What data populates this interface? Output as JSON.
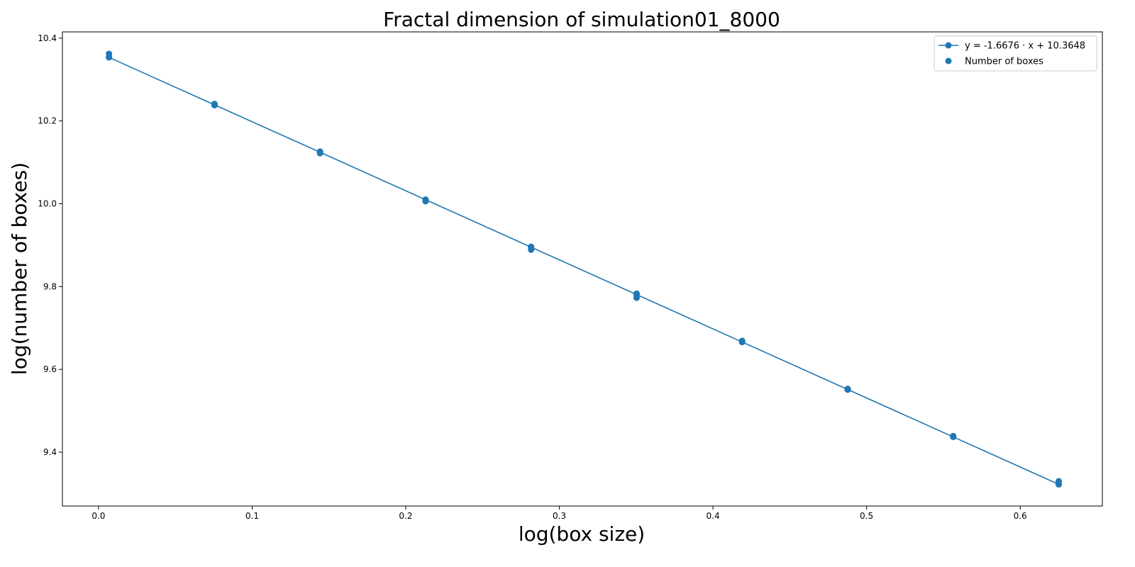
{
  "chart_data": {
    "type": "scatter",
    "title": "Fractal dimension of simulation01_8000",
    "xlabel": "log(box size)",
    "ylabel": "log(number of boxes)",
    "xlim": [
      -0.0235,
      0.6535
    ],
    "ylim": [
      9.27,
      10.415
    ],
    "x_ticks": [
      0.0,
      0.1,
      0.2,
      0.3,
      0.4,
      0.5,
      0.6
    ],
    "x_tick_labels": [
      "0.0",
      "0.1",
      "0.2",
      "0.3",
      "0.4",
      "0.5",
      "0.6"
    ],
    "y_ticks": [
      9.4,
      9.6,
      9.8,
      10.0,
      10.2,
      10.4
    ],
    "y_tick_labels": [
      "9.4",
      "9.6",
      "9.8",
      "10.0",
      "10.2",
      "10.4"
    ],
    "grid": false,
    "legend_position": "top-right",
    "colors": {
      "series": "#1f77b4"
    },
    "series": [
      {
        "name": "y = -1.6676 · x + 10.3648",
        "kind": "line",
        "x": [
          0.0068,
          0.0755,
          0.1442,
          0.2129,
          0.2816,
          0.3503,
          0.419,
          0.4877,
          0.5564,
          0.6251
        ],
        "y": [
          10.3535,
          10.2389,
          10.1244,
          10.0098,
          9.8952,
          9.7807,
          9.6661,
          9.5516,
          9.437,
          9.3224
        ]
      },
      {
        "name": "Number of boxes",
        "kind": "scatter",
        "x": [
          0.0068,
          0.0068,
          0.0755,
          0.0755,
          0.1442,
          0.1442,
          0.2129,
          0.2129,
          0.2816,
          0.2816,
          0.3503,
          0.3503,
          0.419,
          0.419,
          0.4877,
          0.4877,
          0.5564,
          0.5564,
          0.6251,
          0.6251
        ],
        "y": [
          10.362,
          10.354,
          10.241,
          10.238,
          10.126,
          10.122,
          10.01,
          10.006,
          9.896,
          9.889,
          9.783,
          9.773,
          9.669,
          9.666,
          9.553,
          9.551,
          9.439,
          9.438,
          9.33,
          9.323
        ]
      }
    ]
  }
}
